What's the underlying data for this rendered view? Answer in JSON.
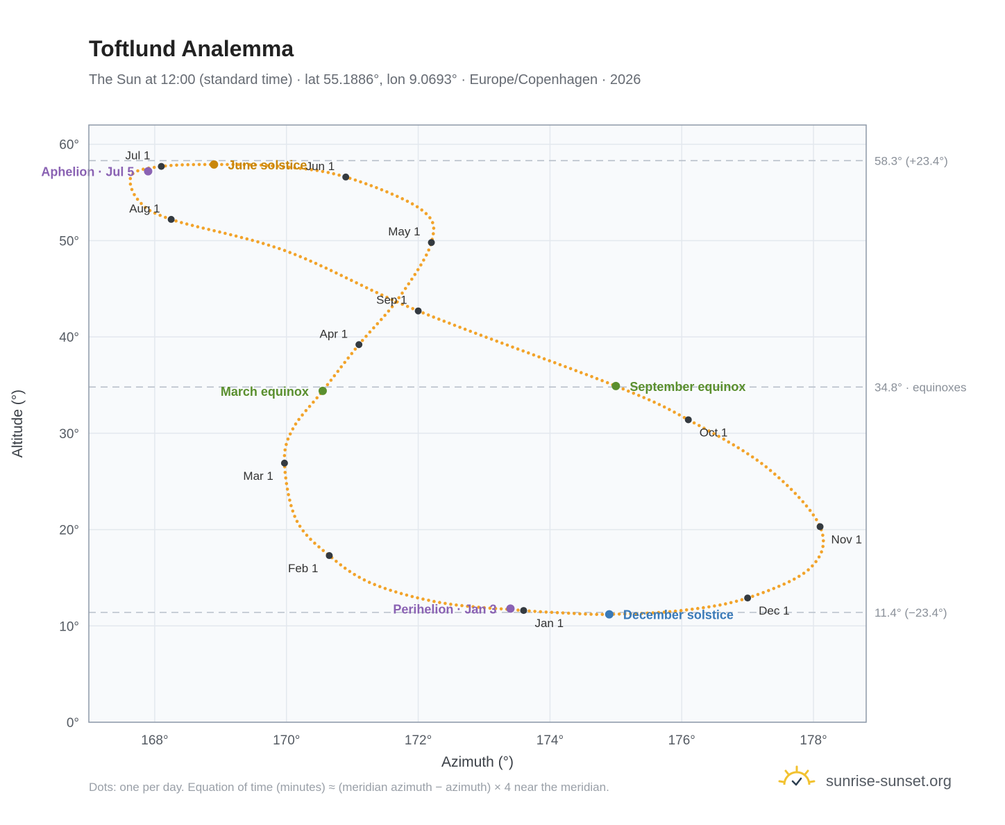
{
  "header": {
    "title": "Toftlund Analemma",
    "subtitle": "The Sun at 12:00 (standard time) · lat 55.1886°, lon 9.0693° · Europe/Copenhagen · 2026"
  },
  "footer": {
    "note": "Dots: one per day. Equation of time (minutes) ≈ (meridian azimuth − azimuth) × 4 near the meridian.",
    "brand": "sunrise-sunset.org"
  },
  "colors": {
    "path": "#f2a32a",
    "month_marker": "#343a40",
    "solstice_june": "#c8860a",
    "equinox": "#5a8f2e",
    "solstice_december": "#3a7ab8",
    "apsis": "#8a62b3",
    "plot_bg": "#f8fafc",
    "grid": "#e3e8ee",
    "frame": "#8e99a8",
    "ref_line": "#b8c0ca"
  },
  "chart_data": {
    "type": "scatter",
    "title": "Toftlund Analemma",
    "xlabel": "Azimuth (°)",
    "ylabel": "Altitude (°)",
    "xlim": [
      167.0,
      178.8
    ],
    "ylim": [
      0,
      62
    ],
    "grid": true,
    "x_ticks": [
      168,
      170,
      172,
      174,
      176,
      178
    ],
    "x_tick_labels": [
      "168°",
      "170°",
      "172°",
      "174°",
      "176°",
      "178°"
    ],
    "y_ticks": [
      0,
      10,
      20,
      30,
      40,
      50,
      60
    ],
    "y_tick_labels": [
      "0°",
      "10°",
      "20°",
      "30°",
      "40°",
      "50°",
      "60°"
    ],
    "series": [
      {
        "marker": "dot",
        "note_daily": true,
        "points": [
          [
            173.6,
            11.6
          ],
          [
            172.35,
            12.4
          ],
          [
            171.3,
            14.4
          ],
          [
            170.65,
            17.3
          ],
          [
            170.15,
            21.0
          ],
          [
            169.97,
            26.9
          ],
          [
            170.1,
            30.5
          ],
          [
            170.55,
            34.4
          ],
          [
            171.1,
            39.2
          ],
          [
            171.7,
            44.0
          ],
          [
            172.2,
            49.8
          ],
          [
            172.05,
            53.2
          ],
          [
            170.9,
            56.6
          ],
          [
            169.9,
            57.7
          ],
          [
            168.9,
            57.9
          ],
          [
            168.1,
            57.7
          ],
          [
            167.65,
            56.8
          ],
          [
            167.75,
            54.2
          ],
          [
            168.25,
            52.2
          ],
          [
            170.0,
            48.9
          ],
          [
            172.0,
            42.7
          ],
          [
            175.0,
            34.9
          ],
          [
            176.1,
            31.4
          ],
          [
            177.3,
            26.4
          ],
          [
            178.1,
            20.3
          ],
          [
            177.95,
            16.0
          ],
          [
            177.0,
            12.9
          ],
          [
            176.0,
            11.6
          ],
          [
            174.9,
            11.2
          ],
          [
            174.2,
            11.35
          ],
          [
            173.6,
            11.6
          ]
        ]
      }
    ],
    "months": [
      {
        "label": "Jan 1",
        "x": 173.6,
        "y": 11.6,
        "anchor": "below"
      },
      {
        "label": "Feb 1",
        "x": 170.65,
        "y": 17.3,
        "anchor": "lower-left"
      },
      {
        "label": "Mar 1",
        "x": 169.97,
        "y": 26.9,
        "anchor": "lower-left"
      },
      {
        "label": "Apr 1",
        "x": 171.1,
        "y": 39.2,
        "anchor": "upper-left"
      },
      {
        "label": "May 1",
        "x": 172.2,
        "y": 49.8,
        "anchor": "upper-left"
      },
      {
        "label": "Jun 1",
        "x": 170.9,
        "y": 56.6,
        "anchor": "upper-left"
      },
      {
        "label": "Jul 1",
        "x": 168.1,
        "y": 57.7,
        "anchor": "upper-left"
      },
      {
        "label": "Aug 1",
        "x": 168.25,
        "y": 52.2,
        "anchor": "upper-left"
      },
      {
        "label": "Sep 1",
        "x": 172.0,
        "y": 42.7,
        "anchor": "upper-left"
      },
      {
        "label": "Oct 1",
        "x": 176.1,
        "y": 31.4,
        "anchor": "lower-right"
      },
      {
        "label": "Nov 1",
        "x": 178.1,
        "y": 20.3,
        "anchor": "lower-right"
      },
      {
        "label": "Dec 1",
        "x": 177.0,
        "y": 12.9,
        "anchor": "lower-right"
      }
    ],
    "events": [
      {
        "label": "June solstice",
        "x": 168.9,
        "y": 57.9,
        "color_key": "solstice_june",
        "anchor": "right"
      },
      {
        "label": "March equinox",
        "x": 170.55,
        "y": 34.4,
        "color_key": "equinox",
        "anchor": "left"
      },
      {
        "label": "September equinox",
        "x": 175.0,
        "y": 34.9,
        "color_key": "equinox",
        "anchor": "right"
      },
      {
        "label": "December solstice",
        "x": 174.9,
        "y": 11.2,
        "color_key": "solstice_december",
        "anchor": "right"
      },
      {
        "label": "Aphelion · Jul 5",
        "x": 167.9,
        "y": 57.2,
        "color_key": "apsis",
        "anchor": "left"
      },
      {
        "label": "Perihelion · Jan 3",
        "x": 173.4,
        "y": 11.8,
        "color_key": "apsis",
        "anchor": "left"
      }
    ],
    "reference_lines": [
      {
        "y": 58.3,
        "label": "58.3° (+23.4°)"
      },
      {
        "y": 34.8,
        "label": "34.8° · equinoxes"
      },
      {
        "y": 11.4,
        "label": "11.4° (−23.4°)"
      }
    ]
  }
}
